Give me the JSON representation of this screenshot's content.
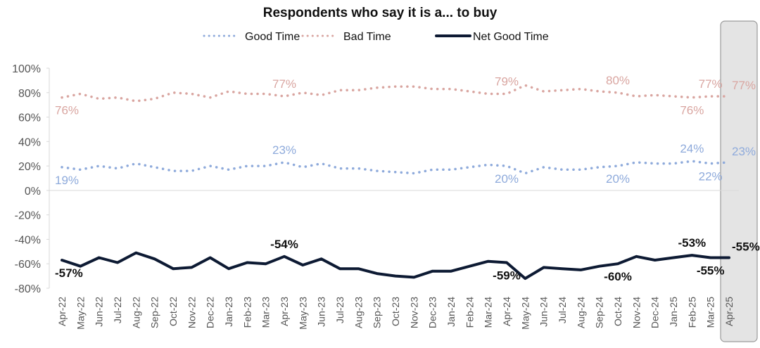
{
  "chart_data": {
    "type": "line",
    "title": "Respondents who say it is a... to buy",
    "xlabel": "",
    "ylabel": "",
    "ylim": [
      -80,
      100
    ],
    "yticks": [
      "100%",
      "80%",
      "60%",
      "40%",
      "20%",
      "0%",
      "-20%",
      "-40%",
      "-60%",
      "-80%"
    ],
    "ytick_values": [
      100,
      80,
      60,
      40,
      20,
      0,
      -20,
      -40,
      -60,
      -80
    ],
    "legend_position": "top",
    "grid": false,
    "highlighted_category": "Apr-25",
    "categories": [
      "Apr-22",
      "May-22",
      "Jun-22",
      "Jul-22",
      "Aug-22",
      "Sep-22",
      "Oct-22",
      "Nov-22",
      "Dec-22",
      "Jan-23",
      "Feb-23",
      "Mar-23",
      "Apr-23",
      "May-23",
      "Jun-23",
      "Jul-23",
      "Aug-23",
      "Sep-23",
      "Oct-23",
      "Nov-23",
      "Dec-23",
      "Jan-24",
      "Feb-24",
      "Mar-24",
      "Apr-24",
      "May-24",
      "Jun-24",
      "Jul-24",
      "Aug-24",
      "Sep-24",
      "Oct-24",
      "Nov-24",
      "Dec-24",
      "Jan-25",
      "Feb-25",
      "Mar-25",
      "Apr-25"
    ],
    "series": [
      {
        "name": "Good Time",
        "color": "#8eaadb",
        "style": "dotted",
        "values": [
          19,
          17,
          20,
          18,
          22,
          19,
          16,
          16,
          20,
          17,
          20,
          20,
          23,
          19,
          22,
          18,
          18,
          16,
          15,
          14,
          17,
          17,
          19,
          21,
          20,
          14,
          19,
          17,
          17,
          19,
          20,
          23,
          22,
          22,
          24,
          22,
          23
        ],
        "labels": [
          {
            "index": 0,
            "text": "19%",
            "pos": "below"
          },
          {
            "index": 12,
            "text": "23%",
            "pos": "above"
          },
          {
            "index": 24,
            "text": "20%",
            "pos": "below"
          },
          {
            "index": 30,
            "text": "20%",
            "pos": "below"
          },
          {
            "index": 34,
            "text": "24%",
            "pos": "above"
          },
          {
            "index": 35,
            "text": "22%",
            "pos": "below"
          },
          {
            "index": 36,
            "text": "23%",
            "pos": "right"
          }
        ]
      },
      {
        "name": "Bad Time",
        "color": "#d9a5a0",
        "style": "dotted",
        "values": [
          76,
          79,
          75,
          76,
          73,
          75,
          80,
          79,
          76,
          81,
          79,
          79,
          77,
          80,
          78,
          82,
          82,
          84,
          85,
          85,
          83,
          83,
          81,
          79,
          79,
          86,
          81,
          82,
          83,
          81,
          80,
          77,
          78,
          77,
          76,
          77,
          77
        ],
        "labels": [
          {
            "index": 0,
            "text": "76%",
            "pos": "below"
          },
          {
            "index": 12,
            "text": "77%",
            "pos": "above"
          },
          {
            "index": 24,
            "text": "79%",
            "pos": "above"
          },
          {
            "index": 30,
            "text": "80%",
            "pos": "above"
          },
          {
            "index": 34,
            "text": "76%",
            "pos": "below"
          },
          {
            "index": 35,
            "text": "77%",
            "pos": "above"
          },
          {
            "index": 36,
            "text": "77%",
            "pos": "right"
          }
        ]
      },
      {
        "name": "Net Good Time",
        "color": "#0d1a33",
        "style": "solid",
        "values": [
          -57,
          -62,
          -55,
          -59,
          -51,
          -56,
          -64,
          -63,
          -55,
          -64,
          -59,
          -60,
          -54,
          -61,
          -56,
          -64,
          -64,
          -68,
          -70,
          -71,
          -66,
          -66,
          -62,
          -58,
          -59,
          -72,
          -63,
          -64,
          -65,
          -62,
          -60,
          -54,
          -57,
          -55,
          -53,
          -55,
          -55
        ],
        "labels": [
          {
            "index": 0,
            "text": "-57%",
            "pos": "below"
          },
          {
            "index": 12,
            "text": "-54%",
            "pos": "above"
          },
          {
            "index": 24,
            "text": "-59%",
            "pos": "below"
          },
          {
            "index": 30,
            "text": "-60%",
            "pos": "below"
          },
          {
            "index": 34,
            "text": "-53%",
            "pos": "above"
          },
          {
            "index": 35,
            "text": "-55%",
            "pos": "below"
          },
          {
            "index": 36,
            "text": "-55%",
            "pos": "right"
          }
        ]
      }
    ]
  }
}
